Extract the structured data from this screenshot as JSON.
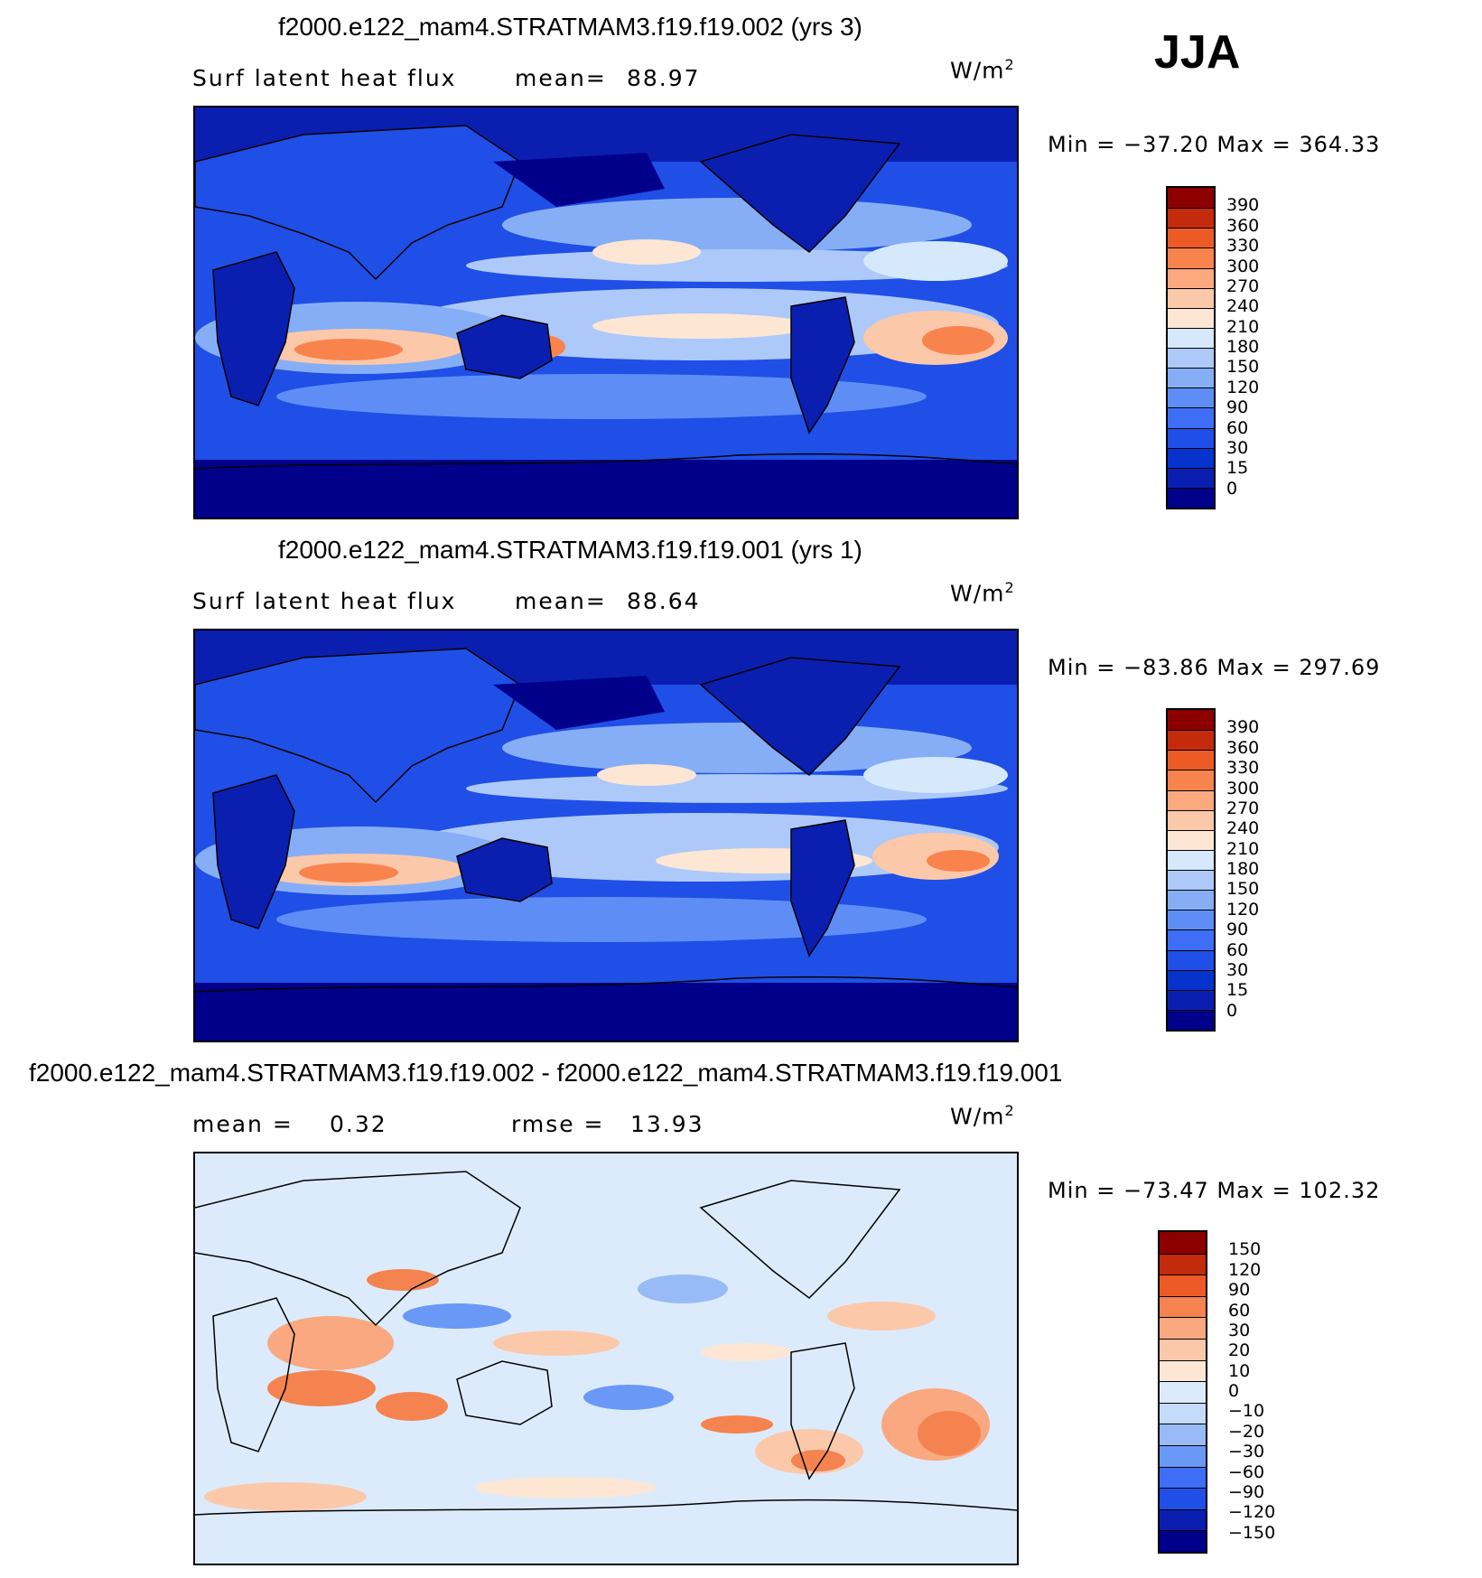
{
  "season": "JJA",
  "palettes": {
    "abs": [
      "#00008b",
      "#0a1fb0",
      "#0633cc",
      "#1f4fe6",
      "#3d6ef5",
      "#5e8ef5",
      "#86aef7",
      "#acc9f9",
      "#d6e8fb",
      "#fde6d4",
      "#fcc8aa",
      "#fca97f",
      "#f9834d",
      "#ec5a25",
      "#c42a0c",
      "#8c0000"
    ],
    "diff": [
      "#00008b",
      "#0a1fb0",
      "#1f4fe6",
      "#3d6ef5",
      "#6a98f7",
      "#98bbf8",
      "#c4dbfa",
      "#dcebfb",
      "#fde6d4",
      "#fcc8aa",
      "#f9a880",
      "#f4834f",
      "#ee5a25",
      "#c42a0c",
      "#8c0000"
    ]
  },
  "panels": [
    {
      "title": "f2000.e122_mam4.STRATMAM3.f19.f19.002 (yrs 3)",
      "left_label": "Surf latent heat flux",
      "mid_label": "mean=",
      "mid_value": "88.97",
      "units": "W/m",
      "units_sup": "2",
      "minmax": "Min = −37.20 Max = 364.33",
      "palette": "abs",
      "cbar_labels": [
        "390",
        "360",
        "330",
        "300",
        "270",
        "240",
        "210",
        "180",
        "150",
        "120",
        "90",
        "60",
        "30",
        "15",
        "0"
      ]
    },
    {
      "title": "f2000.e122_mam4.STRATMAM3.f19.f19.001 (yrs 1)",
      "left_label": "Surf latent heat flux",
      "mid_label": "mean=",
      "mid_value": "88.64",
      "units": "W/m",
      "units_sup": "2",
      "minmax": "Min = −83.86 Max = 297.69",
      "palette": "abs",
      "cbar_labels": [
        "390",
        "360",
        "330",
        "300",
        "270",
        "240",
        "210",
        "180",
        "150",
        "120",
        "90",
        "60",
        "30",
        "15",
        "0"
      ]
    },
    {
      "title": "f2000.e122_mam4.STRATMAM3.f19.f19.002 - f2000.e122_mam4.STRATMAM3.f19.f19.001",
      "left_label": "mean =",
      "left_value": "0.32",
      "mid_label": "rmse =",
      "mid_value": "13.93",
      "units": "W/m",
      "units_sup": "2",
      "minmax": "Min = −73.47 Max = 102.32",
      "palette": "diff",
      "cbar_labels": [
        "150",
        "120",
        "90",
        "60",
        "30",
        "20",
        "10",
        "0",
        "−10",
        "−20",
        "−30",
        "−60",
        "−90",
        "−120",
        "−150"
      ]
    }
  ]
}
